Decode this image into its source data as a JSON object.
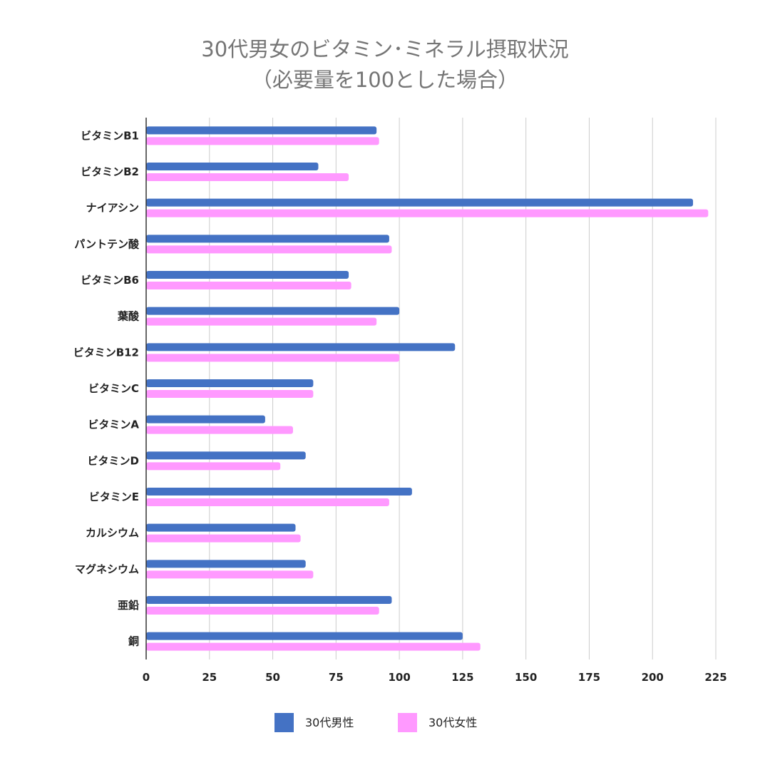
{
  "chart_data": {
    "type": "bar",
    "orientation": "horizontal",
    "title": "30代男女のビタミン･ミネラル摂取状況",
    "subtitle": "（必要量を100とした場合）",
    "xlabel": "",
    "ylabel": "",
    "xlim": [
      0,
      225
    ],
    "xticks": [
      0,
      25,
      50,
      75,
      100,
      125,
      150,
      175,
      200,
      225
    ],
    "grid": true,
    "legend_position": "bottom",
    "categories": [
      "ビタミンB1",
      "ビタミンB2",
      "ナイアシン",
      "パントテン酸",
      "ビタミンB6",
      "葉酸",
      "ビタミンB12",
      "ビタミンC",
      "ビタミンA",
      "ビタミンD",
      "ビタミンE",
      "カルシウム",
      "マグネシウム",
      "亜鉛",
      "銅"
    ],
    "series": [
      {
        "name": "30代男性",
        "color": "#4472c4",
        "values": [
          91,
          68,
          216,
          96,
          80,
          100,
          122,
          66,
          47,
          63,
          105,
          59,
          63,
          97,
          125
        ]
      },
      {
        "name": "30代女性",
        "color": "#ff99ff",
        "values": [
          92,
          80,
          222,
          97,
          81,
          91,
          100,
          66,
          58,
          53,
          96,
          61,
          66,
          92,
          132
        ]
      }
    ]
  }
}
